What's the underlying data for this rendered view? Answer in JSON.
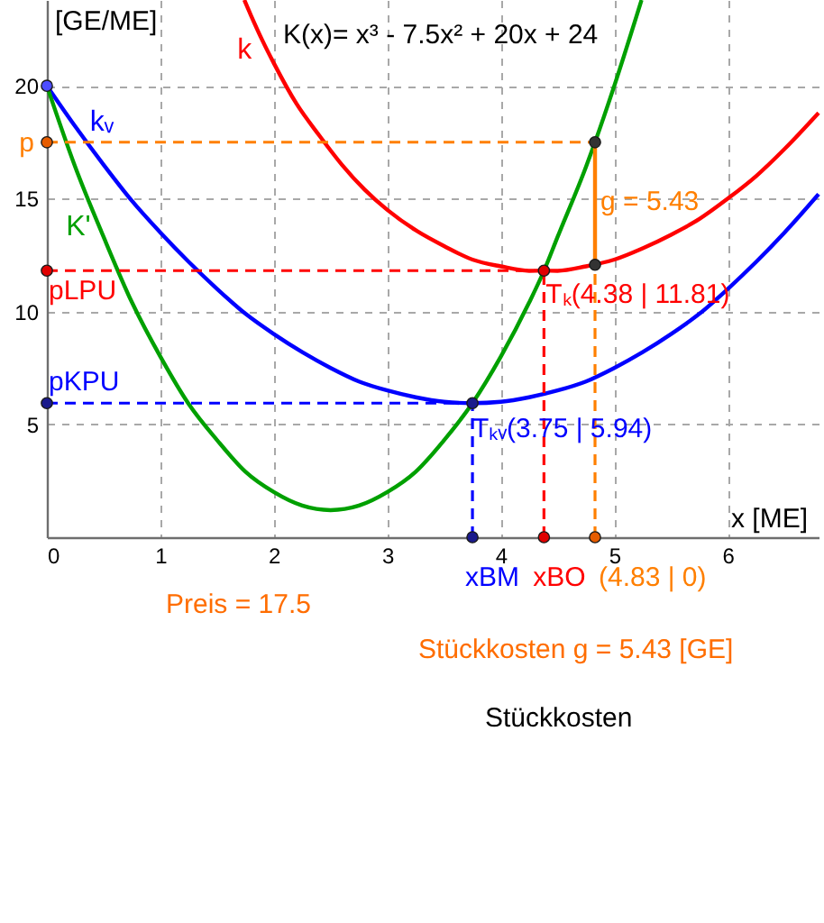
{
  "chart_data": {
    "type": "line",
    "xlabel": "x [ME]",
    "ylabel": "[GE/ME]",
    "xlim": [
      0,
      6.8
    ],
    "ylim": [
      0,
      23.8
    ],
    "xticks": [
      0,
      1,
      2,
      3,
      4,
      5,
      6
    ],
    "yticks": [
      5,
      10,
      15,
      20
    ],
    "grid": true,
    "series": [
      {
        "name": "k",
        "color": "#ff0000",
        "x": [
          1.74,
          1.8,
          1.9,
          2.0,
          2.2,
          2.4,
          2.6,
          2.8,
          3.0,
          3.25,
          3.5,
          3.75,
          4.0,
          4.25,
          4.38,
          4.5,
          4.75,
          5.0,
          5.25,
          5.5,
          5.75,
          6.0,
          6.25,
          6.5,
          6.8
        ],
        "values": [
          23.8,
          23.1,
          22.0,
          21.0,
          19.2,
          17.8,
          16.5,
          15.4,
          14.5,
          13.6,
          12.9,
          12.3,
          12.0,
          11.8,
          11.81,
          11.8,
          12.0,
          12.3,
          12.8,
          13.4,
          14.1,
          15.0,
          16.0,
          17.2,
          18.8
        ]
      },
      {
        "name": "kᵥ",
        "color": "#0000ff",
        "x": [
          0,
          0.25,
          0.5,
          0.75,
          1,
          1.25,
          1.5,
          1.75,
          2,
          2.25,
          2.5,
          2.75,
          3,
          3.25,
          3.5,
          3.75,
          4,
          4.25,
          4.5,
          4.75,
          5,
          5.25,
          5.5,
          5.75,
          6,
          6.25,
          6.5,
          6.8
        ],
        "values": [
          20,
          18.2,
          16.5,
          14.9,
          13.5,
          12.2,
          11.0,
          9.9,
          9.0,
          8.2,
          7.5,
          6.9,
          6.5,
          6.2,
          6.0,
          5.94,
          6.0,
          6.2,
          6.5,
          6.9,
          7.5,
          8.2,
          9.0,
          9.9,
          11.0,
          12.2,
          13.5,
          15.2
        ]
      },
      {
        "name": "K'",
        "color": "#00a000",
        "x": [
          0,
          0.25,
          0.5,
          0.75,
          1,
          1.25,
          1.5,
          1.75,
          2,
          2.25,
          2.5,
          2.75,
          3,
          3.25,
          3.5,
          3.75,
          4,
          4.25,
          4.38,
          4.5,
          4.75,
          4.83,
          5,
          5.24
        ],
        "values": [
          20,
          16.4,
          13.3,
          10.4,
          8.0,
          5.9,
          4.3,
          2.9,
          2.0,
          1.4,
          1.2,
          1.4,
          2.0,
          2.9,
          4.3,
          5.94,
          8.0,
          10.4,
          11.8,
          13.3,
          16.4,
          17.5,
          20.0,
          23.8
        ]
      },
      {
        "color": "#ff7f00",
        "line_style": "dashed",
        "x": [
          0,
          4.83
        ],
        "values": [
          17.5,
          17.5
        ]
      },
      {
        "color": "#ff0000",
        "line_style": "dashed",
        "x": [
          0,
          4.38
        ],
        "values": [
          11.81,
          11.81
        ]
      },
      {
        "color": "#0000ff",
        "line_style": "dashed",
        "x": [
          0,
          3.75
        ],
        "values": [
          5.94,
          5.94
        ]
      },
      {
        "color": "#0000ff",
        "line_style": "dashed",
        "x": [
          3.75,
          3.75
        ],
        "values": [
          0,
          5.94
        ]
      },
      {
        "color": "#ff0000",
        "line_style": "dashed",
        "x": [
          4.38,
          4.38
        ],
        "values": [
          0,
          11.81
        ]
      },
      {
        "color": "#ff7f00",
        "line_style": "dashed",
        "x": [
          4.83,
          4.83
        ],
        "values": [
          0,
          12.07
        ]
      },
      {
        "color": "#ff7f00",
        "x": [
          4.83,
          4.83
        ],
        "values": [
          12.07,
          17.5
        ]
      },
      {
        "type": "scatter",
        "marker": "circle",
        "x": [
          0,
          0,
          0,
          0,
          4.83,
          4.83,
          4.38,
          3.75,
          3.75,
          4.38,
          4.83
        ],
        "values": [
          20,
          17.5,
          11.81,
          5.94,
          17.5,
          12.07,
          11.81,
          5.94,
          0,
          0,
          0
        ],
        "colors": [
          "#4d4dff",
          "#e65c00",
          "#e00000",
          "#1a1a8c",
          "#333333",
          "#333333",
          "#e00000",
          "#1a1a8c",
          "#1a1a8c",
          "#e00000",
          "#e65c00"
        ]
      }
    ],
    "annotations": [
      "K(x)= x³ - 7.5x² + 20x + 24",
      {
        "text": "p",
        "x": 0,
        "y": 17.5
      },
      {
        "text": "pLPU",
        "x": 0,
        "y": 11.81
      },
      {
        "text": "pKPU",
        "x": 0,
        "y": 5.94
      },
      {
        "text": "g = 5.43",
        "x": 4.83,
        "y": 14.9
      },
      {
        "text": "Tₖ(4.38 | 11.81)",
        "x": 4.38,
        "y": 11.81
      },
      {
        "text": "Tₖᵥ(3.75 | 5.94)",
        "x": 3.75,
        "y": 5.94
      },
      {
        "text": "xBM",
        "x": 3.75,
        "y": 0
      },
      {
        "text": "xBO",
        "x": 4.38,
        "y": 0
      },
      {
        "text": "(4.83 | 0)",
        "x": 4.83,
        "y": 0
      },
      "Preis = 17.5",
      "Stückkosten g = 5.43 [GE]",
      "Stückkosten"
    ]
  }
}
